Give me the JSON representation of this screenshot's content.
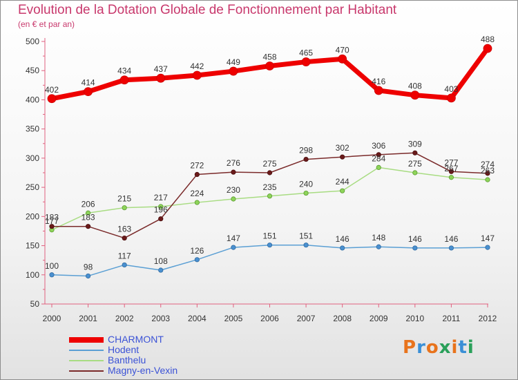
{
  "title": "Evolution de la Dotation Globale de Fonctionnement par Habitant",
  "subtitle": "(en € et par an)",
  "logo": {
    "text": "Proxiti",
    "colors": [
      "#e8731c",
      "#3a8fd6",
      "#e8731c",
      "#2aa05a",
      "#e8731c",
      "#3a8fd6",
      "#2aa05a"
    ]
  },
  "chart_data": {
    "type": "line",
    "title": "Evolution de la Dotation Globale de Fonctionnement par Habitant",
    "ylabel": "(en € et par an)",
    "xlabel": "",
    "ylim": [
      50,
      500
    ],
    "yticks": [
      50,
      100,
      150,
      200,
      250,
      300,
      350,
      400,
      450,
      500
    ],
    "x": [
      "2000",
      "2001",
      "2002",
      "2003",
      "2004",
      "2005",
      "2006",
      "2007",
      "2008",
      "2009",
      "2010",
      "2011",
      "2012"
    ],
    "series": [
      {
        "name": "CHARMONT",
        "color": "#ee0000",
        "values": [
          402,
          414,
          434,
          437,
          442,
          449,
          458,
          465,
          470,
          416,
          408,
          403,
          488
        ],
        "labels": [
          "402",
          "414",
          "434",
          "437",
          "442",
          "449",
          "458",
          "465",
          "470",
          "416",
          "408",
          "403",
          "488"
        ]
      },
      {
        "name": "Hodent",
        "color": "#5a9fd4",
        "values": [
          100,
          98,
          117,
          108,
          126,
          147,
          151,
          151,
          146,
          148,
          146,
          146,
          147
        ],
        "labels": [
          "100",
          "98",
          "117",
          "108",
          "126",
          "147",
          "151",
          "151",
          "146",
          "148",
          "146",
          "146",
          "147"
        ]
      },
      {
        "name": "Banthelu",
        "color": "#a8dc82",
        "values": [
          177,
          206,
          215,
          217,
          224,
          230,
          235,
          240,
          244,
          284,
          275,
          267,
          263
        ],
        "labels": [
          "177",
          "206",
          "215",
          "217",
          "224",
          "230",
          "235",
          "240",
          "244",
          "284",
          "275",
          "267",
          "263"
        ]
      },
      {
        "name": "Magny-en-Vexin",
        "color": "#7a2a2a",
        "values": [
          183,
          183,
          163,
          196,
          272,
          276,
          275,
          298,
          302,
          306,
          309,
          277,
          274
        ],
        "labels": [
          "183",
          "183",
          "163",
          "196",
          "272",
          "276",
          "275",
          "298",
          "302",
          "306",
          "309",
          "277",
          "274"
        ]
      }
    ],
    "legend": {
      "position": "bottom-left",
      "entries": [
        "CHARMONT",
        "Hodent",
        "Banthelu",
        "Magny-en-Vexin"
      ]
    },
    "grid": false
  }
}
